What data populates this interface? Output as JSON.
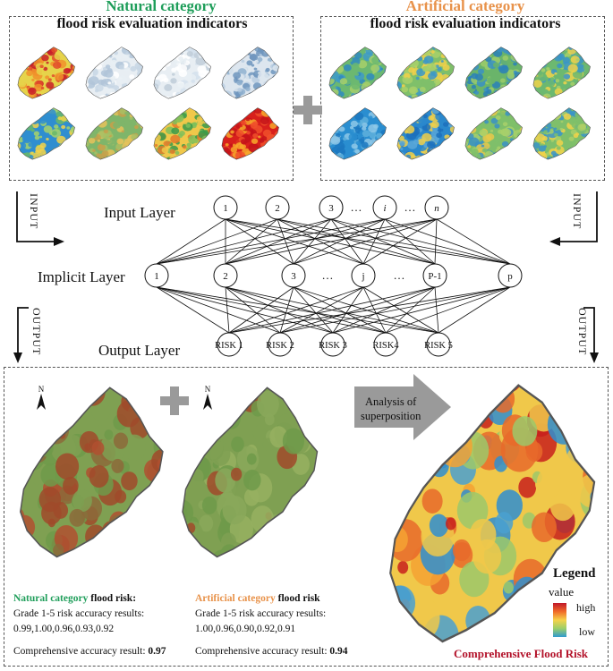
{
  "natural": {
    "title_line1": "Natural category",
    "title_line2": "flood risk evaluation indicators"
  },
  "artificial": {
    "title_line1": "Artificial category",
    "title_line2": "flood risk evaluation indicators"
  },
  "network": {
    "input_label": "Input Layer",
    "implicit_label": "Implicit Layer",
    "output_label": "Output Layer",
    "input_nodes": [
      "1",
      "2",
      "3",
      "…",
      "i",
      "…",
      "n"
    ],
    "implicit_nodes": [
      "1",
      "2",
      "3",
      "…",
      "j",
      "…",
      "P-1",
      "p"
    ],
    "output_nodes": [
      "RISK 1",
      "RISK 2",
      "RISK 3",
      "RISK4",
      "RISK 5"
    ],
    "input_tag": "INPUT",
    "output_tag": "OUTPUT"
  },
  "arrow_text": {
    "line1": "Analysis of",
    "line2": "superposition"
  },
  "natural_result": {
    "title_colored": "Natural category",
    "title_rest": " flood risk:",
    "line1": "Grade 1-5 risk accuracy results:",
    "line2": "0.99,1.00,0.96,0.93,0.92",
    "comp_label": "Comprehensive accuracy result: ",
    "comp_value": "0.97"
  },
  "artificial_result": {
    "title_colored": "Artificial category",
    "title_rest": " flood risk",
    "line1": "Grade 1-5 risk accuracy results:",
    "line2": "1.00,0.96,0.90,0.92,0.91",
    "comp_label": "Comprehensive accuracy result: ",
    "comp_value": "0.94"
  },
  "legend": {
    "title": "Legend",
    "value": "value",
    "high": "high",
    "low": "low"
  },
  "comprehensive_title": "Comprehensive Flood Risk",
  "north": "N",
  "colors": {
    "green": "#1f9e5a",
    "orange": "#e8924a",
    "red": "#b3122a",
    "gray": "#9a9a9a"
  }
}
